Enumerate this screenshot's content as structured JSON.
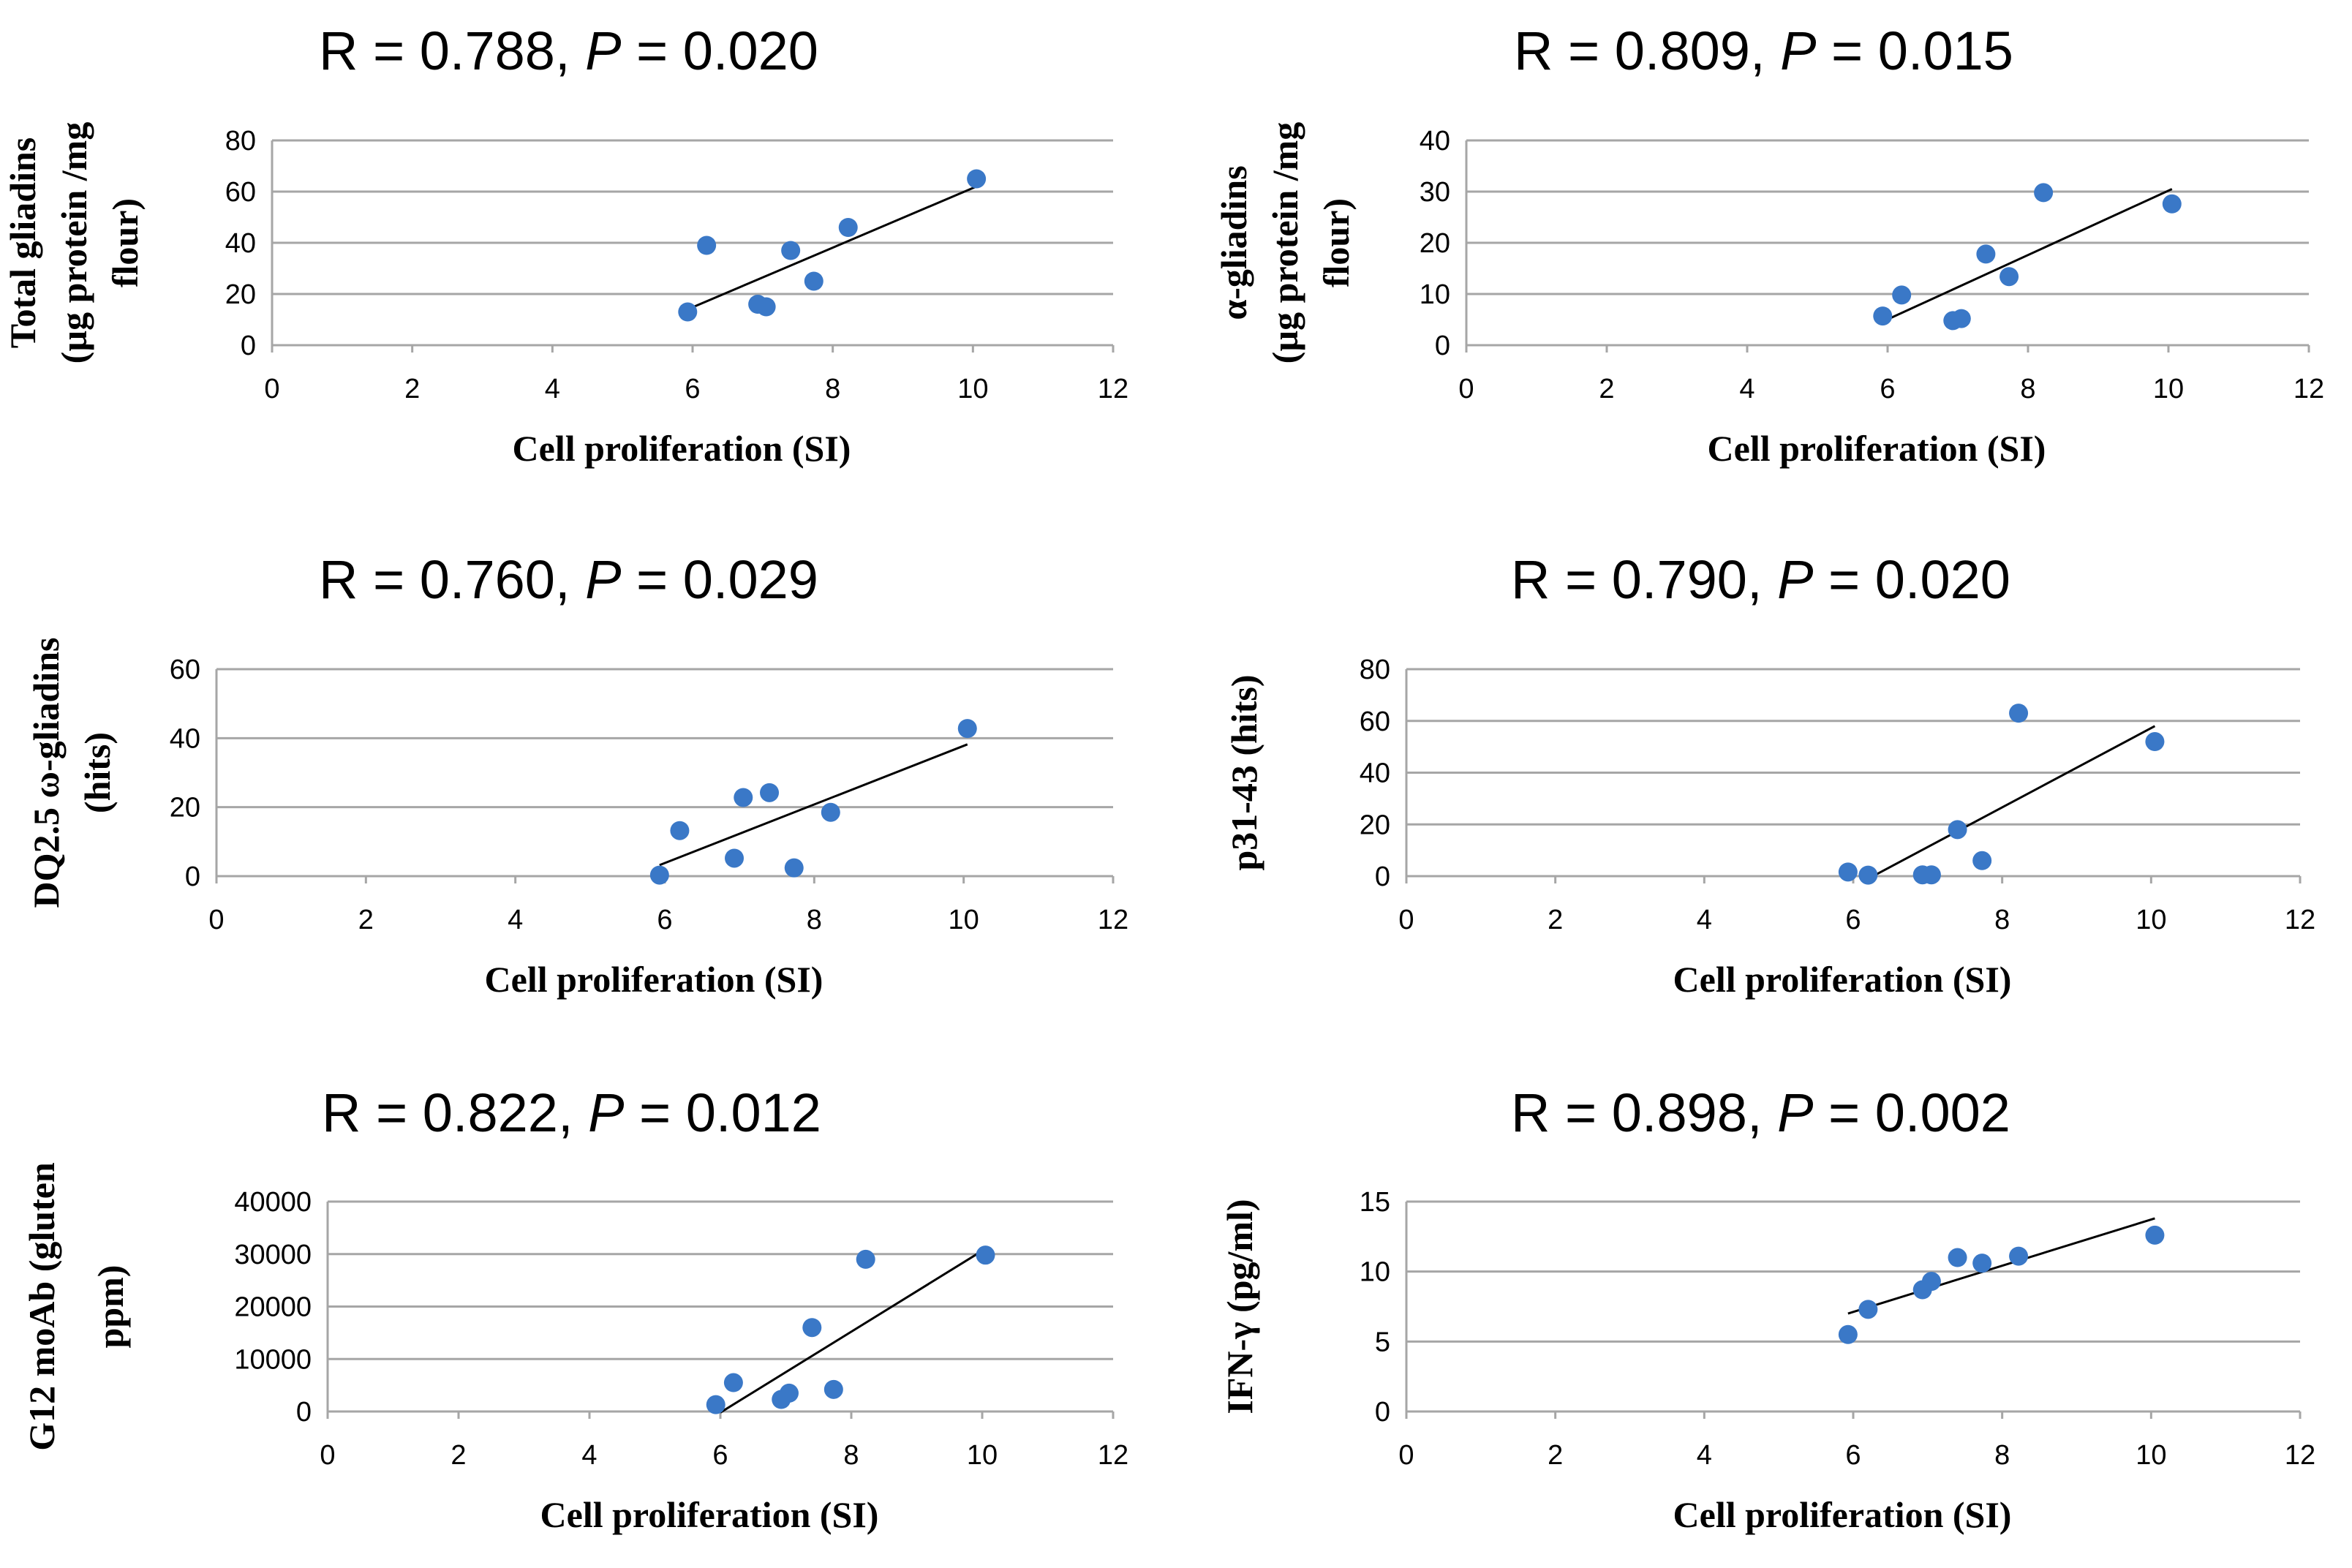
{
  "colors": {
    "point": "#3a78c7",
    "grid": "#a6a6a6",
    "axis": "#a6a6a6",
    "trend": "#000000"
  },
  "chart_data": [
    {
      "type": "scatter",
      "title": {
        "r_text": "R = 0.788, ",
        "p_label": "P",
        "p_text": " = 0.020"
      },
      "xlabel": "Cell proliferation (SI)",
      "ylabel_lines": [
        "Total gliadins",
        "(µg protein /mg",
        "flour)"
      ],
      "xlim": [
        0,
        12
      ],
      "xticks": [
        0,
        2,
        4,
        6,
        8,
        10,
        12
      ],
      "ylim": [
        0,
        80
      ],
      "yticks": [
        0,
        20,
        40,
        60,
        80
      ],
      "x": [
        5.93,
        6.2,
        6.93,
        7.05,
        7.4,
        7.73,
        8.22,
        10.05
      ],
      "y": [
        13,
        39,
        16,
        15,
        37,
        25,
        46,
        65
      ],
      "trendline": [
        [
          5.93,
          14
        ],
        [
          10.05,
          62
        ]
      ]
    },
    {
      "type": "scatter",
      "title": {
        "r_text": "R = 0.809, ",
        "p_label": "P",
        "p_text": " = 0.015"
      },
      "xlabel": "Cell proliferation (SI)",
      "ylabel_lines": [
        "α-gliadins",
        "(µg protein /mg",
        "flour)"
      ],
      "xlim": [
        0,
        12
      ],
      "xticks": [
        0,
        2,
        4,
        6,
        8,
        10,
        12
      ],
      "ylim": [
        0,
        40
      ],
      "yticks": [
        0,
        10,
        20,
        30,
        40
      ],
      "x": [
        5.93,
        6.2,
        6.93,
        7.05,
        7.4,
        7.73,
        8.22,
        10.05
      ],
      "y": [
        5.7,
        9.8,
        4.8,
        5.2,
        17.8,
        13.4,
        29.8,
        27.6
      ],
      "trendline": [
        [
          5.93,
          4.6
        ],
        [
          10.05,
          30.5
        ]
      ]
    },
    {
      "type": "scatter",
      "title": {
        "r_text": "R = 0.760, ",
        "p_label": "P",
        "p_text": " = 0.029"
      },
      "xlabel": "Cell proliferation (SI)",
      "ylabel_lines": [
        "DQ2.5 ω-gliadins",
        "(hits)"
      ],
      "xlim": [
        0,
        12
      ],
      "xticks": [
        0,
        2,
        4,
        6,
        8,
        10,
        12
      ],
      "ylim": [
        0,
        60
      ],
      "yticks": [
        0,
        20,
        40,
        60
      ],
      "x": [
        5.93,
        6.2,
        6.93,
        7.05,
        7.4,
        7.73,
        8.22,
        10.05
      ],
      "y": [
        0.3,
        13.2,
        5.2,
        22.8,
        24.2,
        2.4,
        18.5,
        42.8
      ],
      "trendline": [
        [
          5.93,
          3.2
        ],
        [
          10.05,
          38.2
        ]
      ]
    },
    {
      "type": "scatter",
      "title": {
        "r_text": "R = 0.790, ",
        "p_label": "P",
        "p_text": " = 0.020"
      },
      "xlabel": "Cell proliferation (SI)",
      "ylabel_lines": [
        "p31-43 (hits)"
      ],
      "xlim": [
        0,
        12
      ],
      "xticks": [
        0,
        2,
        4,
        6,
        8,
        10,
        12
      ],
      "ylim": [
        0,
        80
      ],
      "yticks": [
        0,
        20,
        40,
        60,
        80
      ],
      "x": [
        5.93,
        6.2,
        6.93,
        7.05,
        7.4,
        7.73,
        8.22,
        10.05
      ],
      "y": [
        1.6,
        0.4,
        0.5,
        0.5,
        18,
        6,
        63,
        52
      ],
      "trendline": [
        [
          6.2,
          -1
        ],
        [
          10.05,
          58
        ]
      ]
    },
    {
      "type": "scatter",
      "title": {
        "r_text": "R = 0.822, ",
        "p_label": "P",
        "p_text": " = 0.012"
      },
      "xlabel": "Cell proliferation (SI)",
      "ylabel_lines": [
        "G12 moAb (gluten",
        "ppm)"
      ],
      "xlim": [
        0,
        12
      ],
      "xticks": [
        0,
        2,
        4,
        6,
        8,
        10,
        12
      ],
      "ylim": [
        0,
        40000
      ],
      "yticks": [
        0,
        10000,
        20000,
        30000,
        40000
      ],
      "x": [
        5.93,
        6.2,
        6.93,
        7.05,
        7.4,
        7.73,
        8.22,
        10.05
      ],
      "y": [
        1300,
        5500,
        2300,
        3500,
        16000,
        4200,
        29000,
        29800
      ],
      "trendline": [
        [
          6.0,
          -200
        ],
        [
          10.05,
          31000
        ]
      ]
    },
    {
      "type": "scatter",
      "title": {
        "r_text": "R = 0.898, ",
        "p_label": "P",
        "p_text": " = 0.002"
      },
      "xlabel": "Cell proliferation (SI)",
      "ylabel_lines": [
        "IFN-γ (pg/ml)"
      ],
      "xlim": [
        0,
        12
      ],
      "xticks": [
        0,
        2,
        4,
        6,
        8,
        10,
        12
      ],
      "ylim": [
        0,
        15
      ],
      "yticks": [
        0,
        5,
        10,
        15
      ],
      "x": [
        5.93,
        6.2,
        6.93,
        7.05,
        7.4,
        7.73,
        8.22,
        10.05
      ],
      "y": [
        5.5,
        7.3,
        8.7,
        9.3,
        11.0,
        10.6,
        11.1,
        12.6
      ],
      "trendline": [
        [
          5.93,
          7.0
        ],
        [
          10.05,
          13.8
        ]
      ]
    }
  ]
}
